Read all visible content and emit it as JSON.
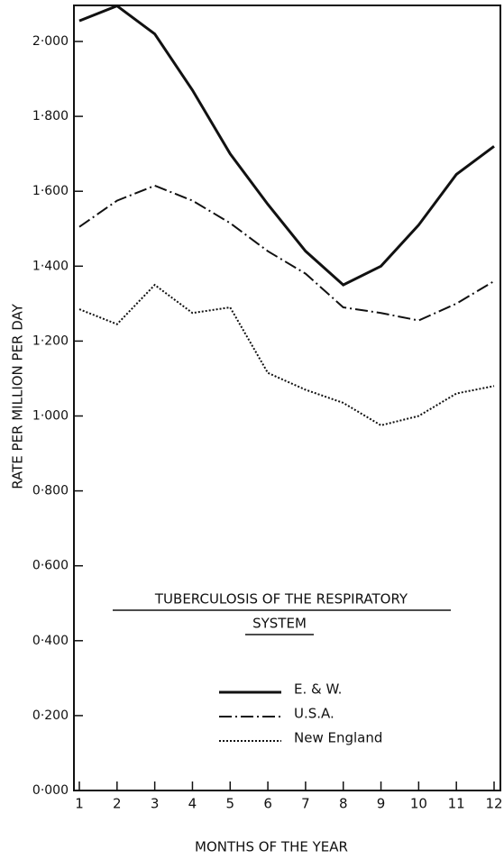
{
  "chart_data": {
    "type": "line",
    "title": [
      "TUBERCULOSIS OF THE RESPIRATORY",
      "SYSTEM"
    ],
    "xlabel": "MONTHS OF THE YEAR",
    "ylabel": "RATE PER MILLION PER DAY",
    "x": [
      1,
      2,
      3,
      4,
      5,
      6,
      7,
      8,
      9,
      10,
      11,
      12
    ],
    "xlim": [
      1,
      12
    ],
    "xticks": [
      1,
      2,
      3,
      4,
      5,
      6,
      7,
      8,
      9,
      10,
      11,
      12
    ],
    "ylim": [
      0,
      2.1
    ],
    "yticks": [
      {
        "value": 0,
        "label": "0·000"
      },
      {
        "value": 0.2,
        "label": "0·200"
      },
      {
        "value": 0.4,
        "label": "0·400"
      },
      {
        "value": 0.6,
        "label": "0·600"
      },
      {
        "value": 0.8,
        "label": "0·800"
      },
      {
        "value": 1.0,
        "label": "1·000"
      },
      {
        "value": 1.2,
        "label": "1·200"
      },
      {
        "value": 1.4,
        "label": "1·400"
      },
      {
        "value": 1.6,
        "label": "1·600"
      },
      {
        "value": 1.8,
        "label": "1·800"
      },
      {
        "value": 2.0,
        "label": "2·000"
      }
    ],
    "grid": false,
    "series": [
      {
        "name": "E. & W.",
        "color": "#111111",
        "dash": "solid",
        "values": [
          2.055,
          2.095,
          2.02,
          1.87,
          1.7,
          1.565,
          1.44,
          1.35,
          1.4,
          1.51,
          1.645,
          1.72
        ]
      },
      {
        "name": "U.S.A.",
        "color": "#111111",
        "dash": "dashdot",
        "values": [
          1.505,
          1.575,
          1.615,
          1.575,
          1.515,
          1.44,
          1.38,
          1.29,
          1.275,
          1.255,
          1.3,
          1.36
        ]
      },
      {
        "name": "New England",
        "color": "#111111",
        "dash": "dotted",
        "values": [
          1.285,
          1.245,
          1.35,
          1.275,
          1.29,
          1.115,
          1.07,
          1.035,
          0.975,
          1.0,
          1.06,
          1.08
        ]
      }
    ]
  }
}
